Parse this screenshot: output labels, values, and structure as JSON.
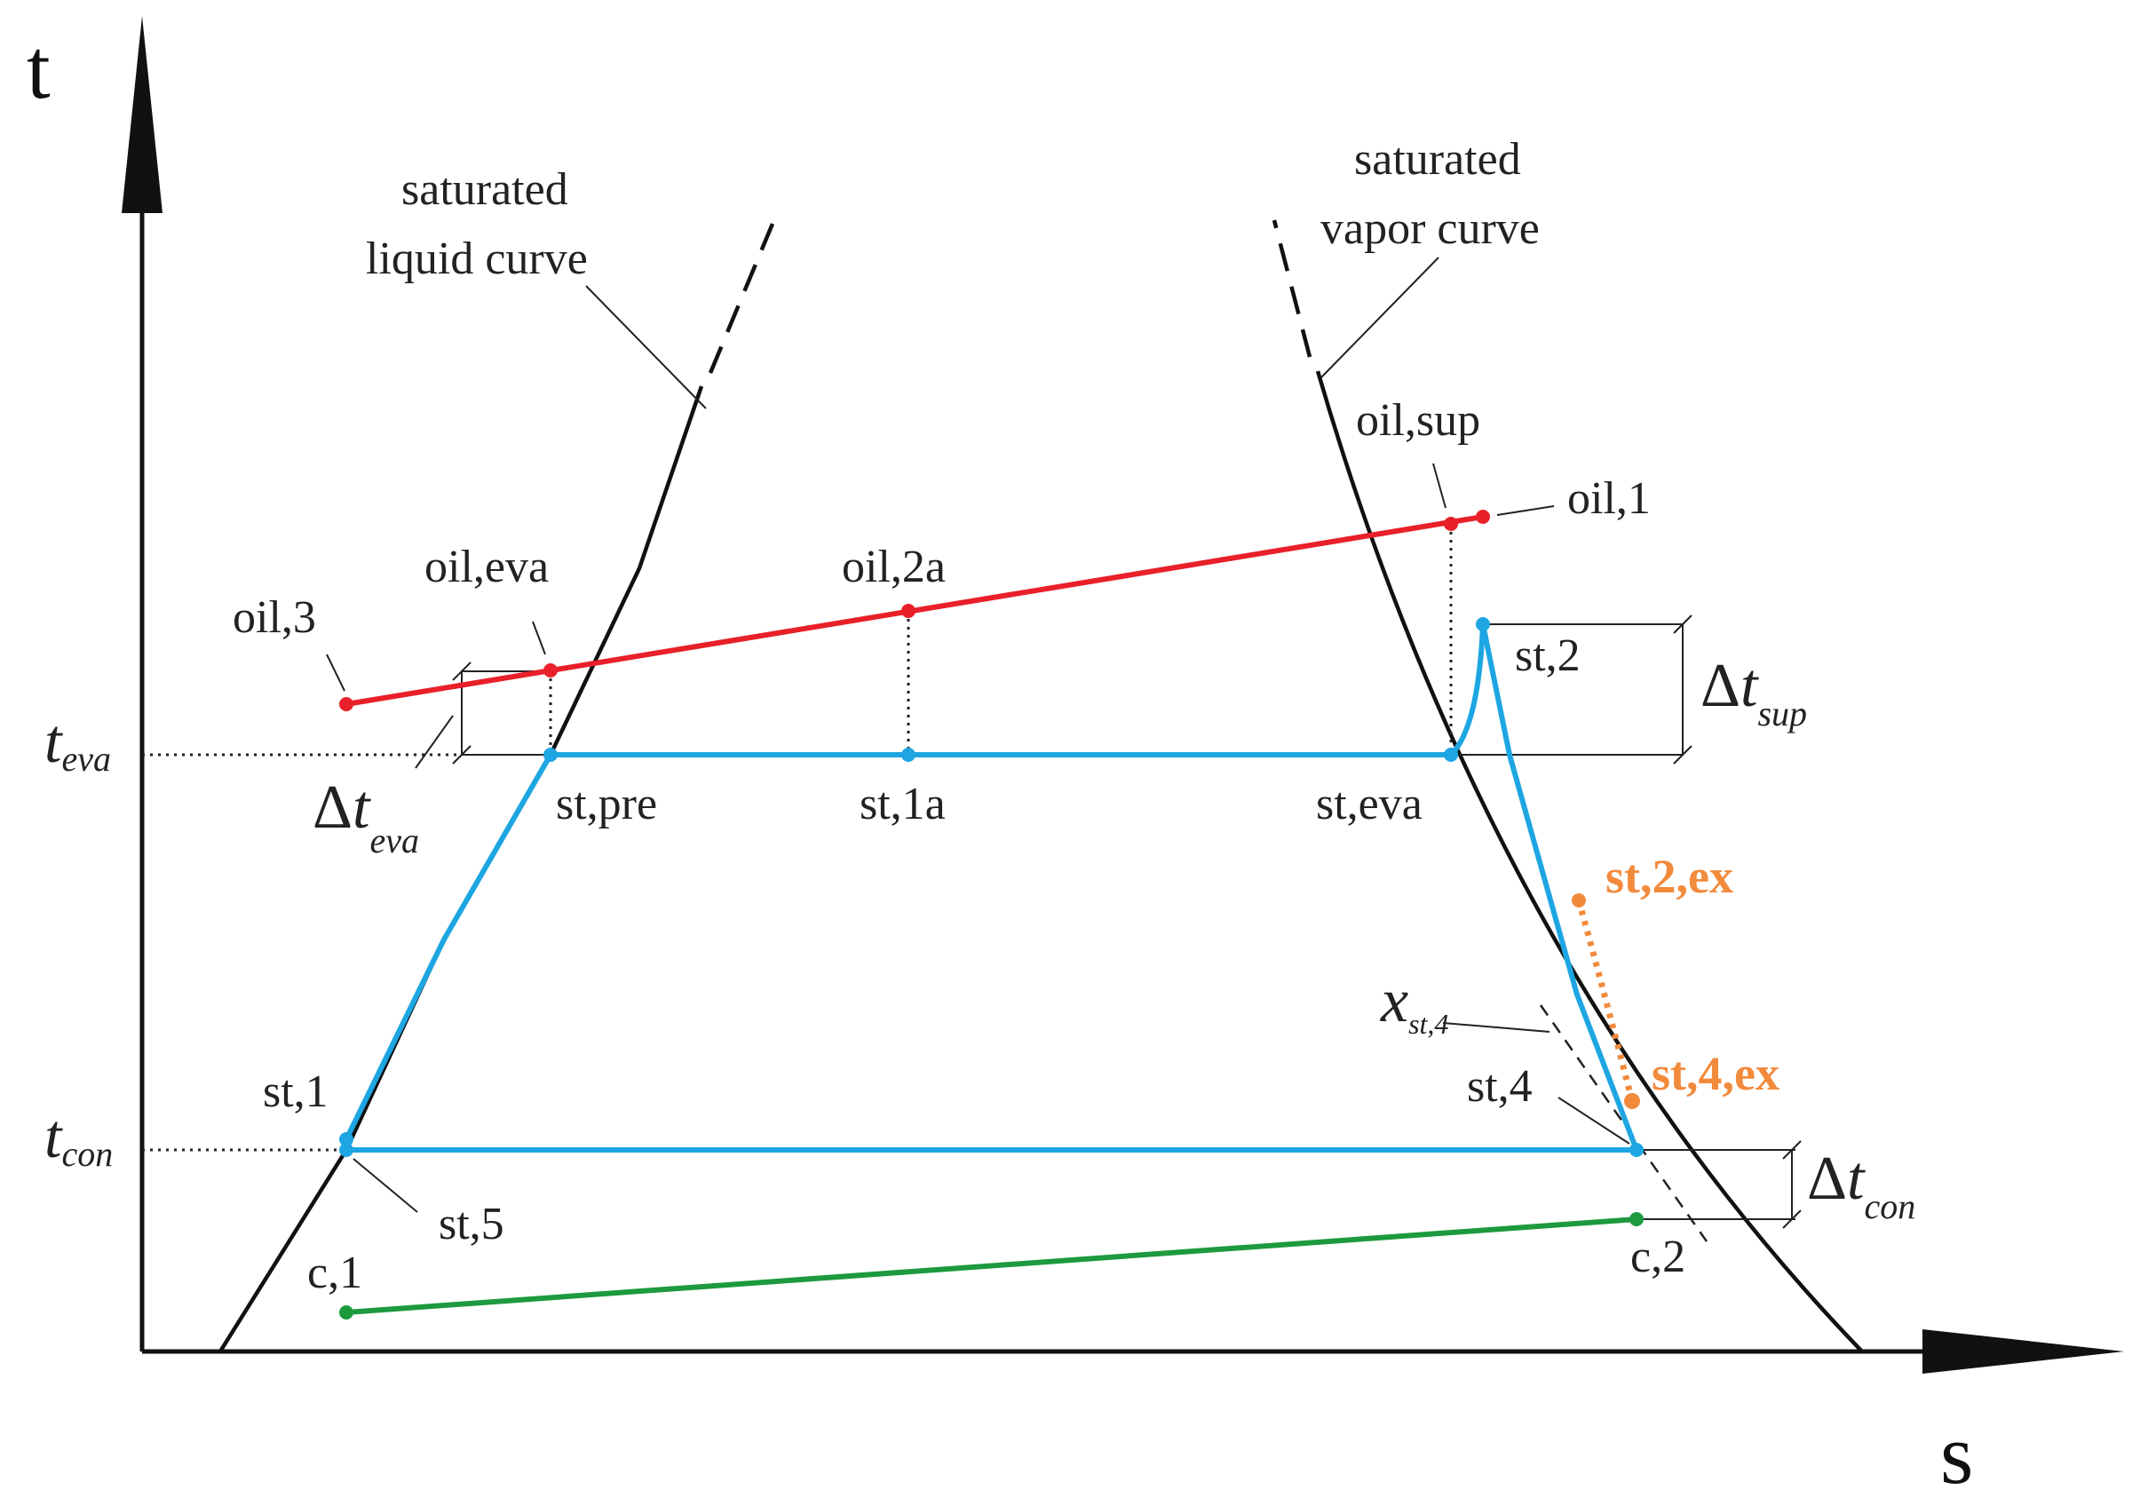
{
  "axes": {
    "y_label": "t",
    "x_label": "s"
  },
  "curves": {
    "liquid_label_line1": "saturated",
    "liquid_label_line2": "liquid curve",
    "vapor_label_line1": "saturated",
    "vapor_label_line2": "vapor curve"
  },
  "points": {
    "oil_3": "oil,3",
    "oil_eva": "oil,eva",
    "oil_2a": "oil,2a",
    "oil_sup": "oil,sup",
    "oil_1": "oil,1",
    "st_2": "st,2",
    "st_pre": "st,pre",
    "st_1a": "st,1a",
    "st_eva": "st,eva",
    "st_2_ex": "st,2,ex",
    "st_4_ex": "st,4,ex",
    "st_4": "st,4",
    "st_1": "st,1",
    "st_5": "st,5",
    "c_1": "c,1",
    "c_2": "c,2"
  },
  "symbols": {
    "t_eva_main": "t",
    "t_eva_sub": "eva",
    "t_con_main": "t",
    "t_con_sub": "con",
    "dt_eva_delta": "Δ",
    "dt_eva_t": "t",
    "dt_eva_sub": "eva",
    "dt_sup_delta": "Δ",
    "dt_sup_t": "t",
    "dt_sup_sub": "sup",
    "dt_con_delta": "Δ",
    "dt_con_t": "t",
    "dt_con_sub": "con",
    "x_st4_main": "x",
    "x_st4_sub": "st,4"
  },
  "colors": {
    "oil": "#e8202a",
    "steam": "#1ea6e2",
    "coolant": "#1d9a3e",
    "expansion": "#f28a3c",
    "ink": "#111111"
  }
}
